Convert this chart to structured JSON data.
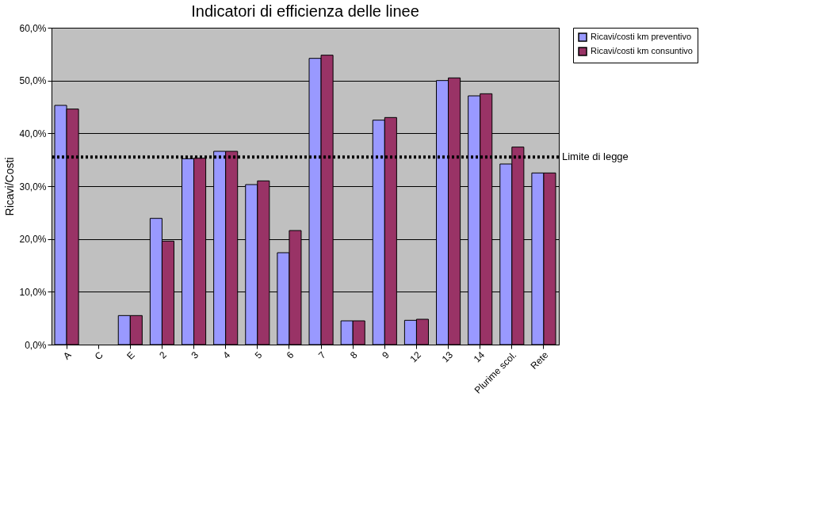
{
  "chart_data": {
    "type": "bar",
    "title": "Indicatori di efficienza delle linee",
    "ylabel": "Ricavi/Costi",
    "categories": [
      "A",
      "C",
      "E",
      "2",
      "3",
      "4",
      "5",
      "6",
      "7",
      "8",
      "9",
      "12",
      "13",
      "14",
      "Plurime scol.",
      "Rete"
    ],
    "series": [
      {
        "name": "Ricavi/costi km preventivo",
        "color": "#9999ff",
        "values": [
          45.3,
          null,
          5.5,
          23.9,
          35.2,
          36.6,
          30.3,
          17.4,
          54.2,
          4.5,
          42.5,
          4.6,
          50.0,
          47.1,
          34.2,
          32.5
        ]
      },
      {
        "name": "Ricavi/costi km consuntivo",
        "color": "#993366",
        "values": [
          44.6,
          null,
          5.5,
          19.6,
          35.3,
          36.6,
          31.0,
          21.6,
          54.8,
          4.5,
          43.0,
          4.8,
          50.5,
          47.5,
          37.4,
          32.5
        ]
      }
    ],
    "ylim": [
      0,
      60
    ],
    "yticks": [
      {
        "value": 0,
        "label": "0,0%"
      },
      {
        "value": 10,
        "label": "10,0%"
      },
      {
        "value": 20,
        "label": "20,0%"
      },
      {
        "value": 30,
        "label": "30,0%"
      },
      {
        "value": 40,
        "label": "40,0%"
      },
      {
        "value": 50,
        "label": "50,0%"
      },
      {
        "value": 60,
        "label": "60,0%"
      }
    ],
    "ref_lines": [
      {
        "axis": "y",
        "value": 35.5,
        "label": "Limite di legge",
        "color": "#000000",
        "line_style": "dotted"
      }
    ],
    "grid": "y",
    "legend": "right"
  }
}
